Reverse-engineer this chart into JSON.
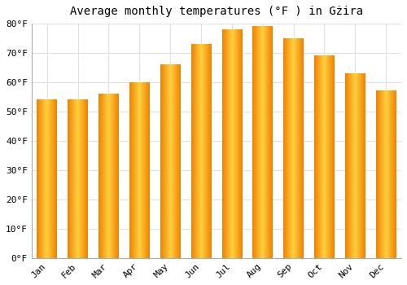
{
  "title": "Average monthly temperatures (°F ) in Gżira",
  "months": [
    "Jan",
    "Feb",
    "Mar",
    "Apr",
    "May",
    "Jun",
    "Jul",
    "Aug",
    "Sep",
    "Oct",
    "Nov",
    "Dec"
  ],
  "values": [
    54,
    54,
    56,
    60,
    66,
    73,
    78,
    79,
    75,
    69,
    63,
    57
  ],
  "bar_color_center": "#FFD040",
  "bar_color_edge": "#F08000",
  "ylim": [
    0,
    80
  ],
  "yticks": [
    0,
    10,
    20,
    30,
    40,
    50,
    60,
    70,
    80
  ],
  "ytick_labels": [
    "0°F",
    "10°F",
    "20°F",
    "30°F",
    "40°F",
    "50°F",
    "60°F",
    "70°F",
    "80°F"
  ],
  "background_color": "#FFFFFF",
  "grid_color": "#E0E0E0",
  "title_fontsize": 10,
  "tick_fontsize": 8,
  "bar_width": 0.65
}
